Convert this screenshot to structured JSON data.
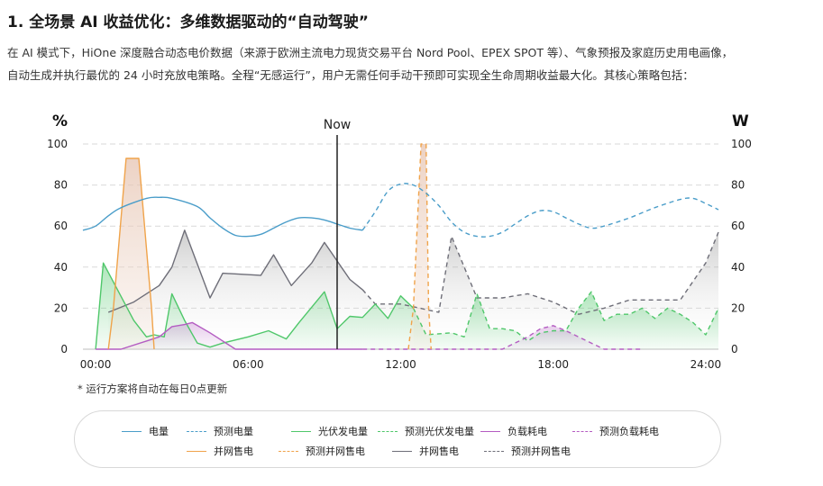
{
  "heading": "1. 全场景 AI 收益优化：多维数据驱动的“自动驾驶”",
  "intro_lines": [
    "在 AI 模式下，HiOne 深度融合动态电价数据（来源于欧洲主流电力现货交易平台 Nord Pool、EPEX SPOT 等）、气象预报及家庭历史用电画像，",
    "自动生成并执行最优的 24 小时充放电策略。全程“无感运行”，用户无需任何手动干预即可实现全生命周期收益最大化。其核心策略包括："
  ],
  "note": "* 运行方案将自动在每日0点更新",
  "chart_data": {
    "type": "line",
    "x_unit": "hour",
    "xlim": [
      -0.5,
      24.5
    ],
    "ylim": [
      0,
      100
    ],
    "y_ticks": [
      0,
      20,
      40,
      60,
      80,
      100
    ],
    "x_ticks": [
      {
        "value": 0,
        "label": "00:00"
      },
      {
        "value": 6,
        "label": "06:00"
      },
      {
        "value": 12,
        "label": "12:00"
      },
      {
        "value": 18,
        "label": "18:00"
      },
      {
        "value": 24,
        "label": "24:00"
      }
    ],
    "left_unit": "%",
    "right_unit": "W",
    "grid": true,
    "now": {
      "x": 9.5,
      "label": "Now"
    },
    "legend": {
      "placement": "bottom",
      "entries": [
        {
          "label": "电量",
          "color": "#4a9dc9",
          "dashed": false
        },
        {
          "label": "预测电量",
          "color": "#4a9dc9",
          "dashed": true
        },
        {
          "label": "光伏发电量",
          "color": "#4fc76a",
          "dashed": false
        },
        {
          "label": "预测光伏发电量",
          "color": "#4fc76a",
          "dashed": true
        },
        {
          "label": "负载耗电",
          "color": "#b45cc2",
          "dashed": false
        },
        {
          "label": "预测负载耗电",
          "color": "#b45cc2",
          "dashed": true
        },
        {
          "label": "并网售电",
          "color": "#f0a34a",
          "dashed": false
        },
        {
          "label": "预测并网售电",
          "color": "#f0a34a",
          "dashed": true
        },
        {
          "label": "并网售电",
          "color": "#6e6e78",
          "dashed": false
        },
        {
          "label": "预测并网售电",
          "color": "#6e6e78",
          "dashed": true
        }
      ]
    },
    "series": [
      {
        "id": "battery",
        "color": "#4a9dc9",
        "dashed": false,
        "fill": false,
        "smooth": true,
        "points": [
          [
            -0.5,
            58
          ],
          [
            0,
            60
          ],
          [
            0.5,
            65
          ],
          [
            1,
            69
          ],
          [
            2,
            73.5
          ],
          [
            2.5,
            74
          ],
          [
            3,
            73.5
          ],
          [
            4,
            69.5
          ],
          [
            4.5,
            64
          ],
          [
            5,
            59
          ],
          [
            5.5,
            55.5
          ],
          [
            6,
            55
          ],
          [
            6.5,
            56
          ],
          [
            7,
            59
          ],
          [
            7.5,
            62
          ],
          [
            8,
            64
          ],
          [
            8.5,
            64
          ],
          [
            9,
            63
          ],
          [
            9.5,
            61
          ],
          [
            10,
            59
          ],
          [
            10.5,
            58
          ]
        ]
      },
      {
        "id": "battery-forecast",
        "color": "#4a9dc9",
        "dashed": true,
        "fill": false,
        "smooth": true,
        "points": [
          [
            10.5,
            58
          ],
          [
            11,
            67
          ],
          [
            11.5,
            77
          ],
          [
            12,
            80.5
          ],
          [
            12.5,
            80
          ],
          [
            13,
            76
          ],
          [
            13.5,
            70
          ],
          [
            14,
            62
          ],
          [
            14.5,
            57
          ],
          [
            15,
            55
          ],
          [
            15.5,
            55
          ],
          [
            16,
            57
          ],
          [
            16.5,
            61
          ],
          [
            17,
            65
          ],
          [
            17.5,
            67.5
          ],
          [
            18,
            67
          ],
          [
            18.5,
            64
          ],
          [
            19,
            61
          ],
          [
            19.5,
            59
          ],
          [
            20,
            60
          ],
          [
            21,
            64
          ],
          [
            22,
            69
          ],
          [
            23,
            73
          ],
          [
            23.5,
            73.5
          ],
          [
            24,
            71
          ],
          [
            24.5,
            68
          ]
        ]
      },
      {
        "id": "pv",
        "color": "#4fc76a",
        "dashed": false,
        "fill": true,
        "smooth": false,
        "points": [
          [
            0,
            0
          ],
          [
            0.3,
            42
          ],
          [
            1.5,
            14
          ],
          [
            2,
            6
          ],
          [
            2.3,
            7
          ],
          [
            2.7,
            6
          ],
          [
            3,
            27
          ],
          [
            3.5,
            14
          ],
          [
            4,
            3
          ],
          [
            4.5,
            1
          ],
          [
            5,
            3
          ],
          [
            6,
            6
          ],
          [
            6.8,
            9
          ],
          [
            7.5,
            5
          ],
          [
            8,
            13
          ],
          [
            9,
            28
          ],
          [
            9.5,
            10
          ],
          [
            10,
            16
          ],
          [
            10.5,
            15.5
          ],
          [
            11,
            22
          ],
          [
            11.5,
            15
          ],
          [
            12,
            26
          ],
          [
            12.5,
            20
          ]
        ]
      },
      {
        "id": "pv-forecast",
        "color": "#4fc76a",
        "dashed": true,
        "fill": true,
        "smooth": false,
        "points": [
          [
            12.5,
            20
          ],
          [
            13,
            7
          ],
          [
            14,
            8
          ],
          [
            14.5,
            6
          ],
          [
            15,
            27
          ],
          [
            15.5,
            10
          ],
          [
            16,
            10
          ],
          [
            16.5,
            9
          ],
          [
            17,
            4
          ],
          [
            17.5,
            8
          ],
          [
            18,
            9
          ],
          [
            18.5,
            9
          ],
          [
            19,
            20
          ],
          [
            19.5,
            28
          ],
          [
            20,
            14
          ],
          [
            20.5,
            17
          ],
          [
            21,
            17
          ],
          [
            21.5,
            20
          ],
          [
            22,
            15
          ],
          [
            22.5,
            20
          ],
          [
            23,
            17
          ],
          [
            23.5,
            13
          ],
          [
            24,
            7
          ],
          [
            24.5,
            20
          ]
        ]
      },
      {
        "id": "load",
        "color": "#b45cc2",
        "dashed": false,
        "fill": true,
        "smooth": false,
        "points": [
          [
            0,
            0
          ],
          [
            1,
            0
          ],
          [
            2,
            4
          ],
          [
            2.5,
            6
          ],
          [
            3,
            11
          ],
          [
            3.5,
            12
          ],
          [
            3.8,
            13
          ],
          [
            4.5,
            8
          ],
          [
            5.5,
            0
          ],
          [
            10.5,
            0
          ]
        ]
      },
      {
        "id": "load-forecast",
        "color": "#b45cc2",
        "dashed": true,
        "fill": true,
        "smooth": false,
        "points": [
          [
            10.5,
            0
          ],
          [
            16,
            0
          ],
          [
            17,
            6
          ],
          [
            17.5,
            10
          ],
          [
            18,
            11.5
          ],
          [
            18.5,
            9
          ],
          [
            19.5,
            3
          ],
          [
            20,
            0
          ],
          [
            21.5,
            0
          ]
        ]
      },
      {
        "id": "grid-sell",
        "color": "#f0a34a",
        "dashed": false,
        "fill": true,
        "smooth": false,
        "points": [
          [
            0.5,
            0
          ],
          [
            0.7,
            20
          ],
          [
            1.2,
            93
          ],
          [
            1.7,
            93
          ],
          [
            2.2,
            20
          ],
          [
            2.3,
            0
          ]
        ]
      },
      {
        "id": "grid-sell-forecast",
        "color": "#f0a34a",
        "dashed": true,
        "fill": true,
        "smooth": false,
        "points": [
          [
            12.3,
            0
          ],
          [
            12.5,
            20
          ],
          [
            12.8,
            100
          ],
          [
            13,
            100
          ],
          [
            13.1,
            20
          ],
          [
            13.2,
            0
          ]
        ]
      },
      {
        "id": "grid-sell-gray",
        "color": "#6e6e78",
        "dashed": false,
        "fill": true,
        "smooth": false,
        "points": [
          [
            0.5,
            18
          ],
          [
            1.5,
            23
          ],
          [
            2.5,
            31
          ],
          [
            3,
            40
          ],
          [
            3.5,
            58
          ],
          [
            4.5,
            25
          ],
          [
            5,
            37
          ],
          [
            6.5,
            36
          ],
          [
            7,
            46
          ],
          [
            7.7,
            31
          ],
          [
            8.5,
            42
          ],
          [
            9,
            52
          ],
          [
            10,
            34
          ],
          [
            10.5,
            29
          ]
        ]
      },
      {
        "id": "grid-sell-gray-forecast",
        "color": "#6e6e78",
        "dashed": true,
        "fill": true,
        "smooth": false,
        "points": [
          [
            10.5,
            29
          ],
          [
            11,
            22
          ],
          [
            12,
            22
          ],
          [
            13.5,
            18
          ],
          [
            14,
            55
          ],
          [
            14.5,
            40
          ],
          [
            15,
            25
          ],
          [
            16,
            25
          ],
          [
            17,
            27
          ],
          [
            18,
            23
          ],
          [
            19,
            17
          ],
          [
            20,
            20
          ],
          [
            21,
            24
          ],
          [
            22,
            24
          ],
          [
            23,
            24
          ],
          [
            24,
            42
          ],
          [
            24.5,
            57
          ]
        ]
      }
    ]
  }
}
